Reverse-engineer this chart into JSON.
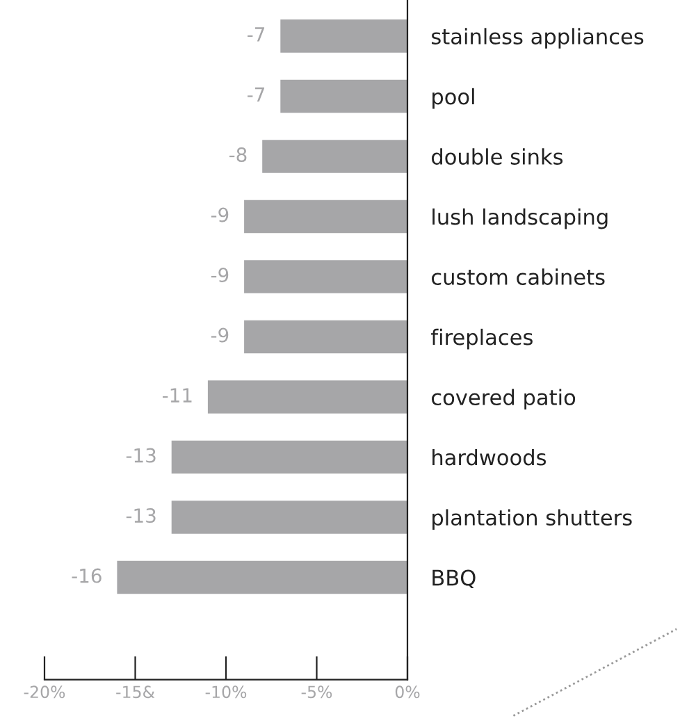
{
  "chart_data": {
    "type": "bar",
    "orientation": "horizontal",
    "categories": [
      "stainless appliances",
      "pool",
      "double sinks",
      "lush landscaping",
      "custom cabinets",
      "fireplaces",
      "covered patio",
      "hardwoods",
      "plantation shutters",
      "BBQ"
    ],
    "values": [
      -7,
      -7,
      -8,
      -9,
      -9,
      -9,
      -11,
      -13,
      -13,
      -16
    ],
    "color": "#a6a6a8",
    "data_labels": true,
    "xlim": [
      -20,
      0
    ],
    "xticks": [
      {
        "value": -20,
        "label": "-20%"
      },
      {
        "value": -15,
        "label": "-15&"
      },
      {
        "value": -10,
        "label": "-10%"
      },
      {
        "value": -5,
        "label": "-5%"
      },
      {
        "value": 0,
        "label": "0%"
      }
    ],
    "grid": false,
    "legend": false
  }
}
